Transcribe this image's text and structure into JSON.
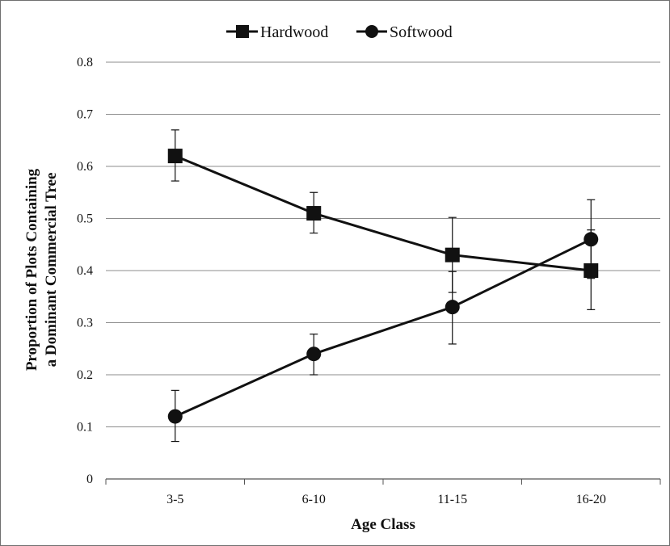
{
  "chart_data": {
    "type": "line",
    "categories": [
      "3-5",
      "6-10",
      "11-15",
      "16-20"
    ],
    "xlabel": "Age Class",
    "ylabel_lines": [
      "Proportion of Plots Containing",
      "a Dominant Commercial Tree"
    ],
    "ylim": [
      0,
      0.8
    ],
    "yticks": [
      "0",
      "0.1",
      "0.2",
      "0.3",
      "0.4",
      "0.5",
      "0.6",
      "0.7",
      "0.8"
    ],
    "grid": "horizontal",
    "legend_position": "top-center",
    "series": [
      {
        "name": "Hardwood",
        "marker": "square",
        "values": [
          0.62,
          0.51,
          0.43,
          0.4
        ],
        "error_low": [
          0.572,
          0.472,
          0.358,
          0.325
        ],
        "error_high": [
          0.67,
          0.55,
          0.502,
          0.478
        ],
        "color": "#111111"
      },
      {
        "name": "Softwood",
        "marker": "circle",
        "values": [
          0.12,
          0.24,
          0.33,
          0.46
        ],
        "error_low": [
          0.072,
          0.2,
          0.259,
          0.385
        ],
        "error_high": [
          0.17,
          0.278,
          0.398,
          0.536
        ],
        "color": "#111111"
      }
    ]
  }
}
